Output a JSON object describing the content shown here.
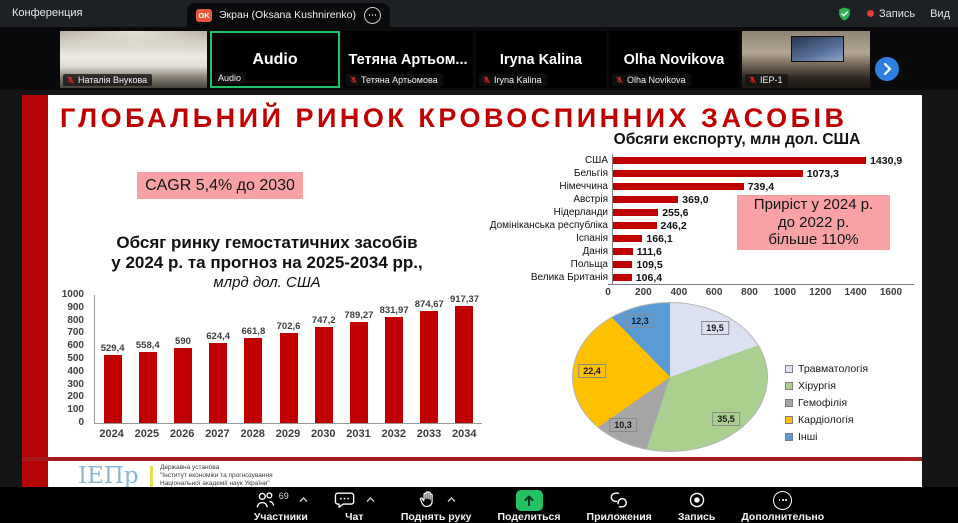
{
  "titlebar": {
    "conference_label": "Конференция",
    "tab_badge": "OK",
    "tab_title": "Экран (Oksana Kushnirenko)",
    "record_label": "Запись",
    "view_label": "Вид",
    "icons": [
      "shield-check-icon",
      "record-dot-icon",
      "tab-options-ellipsis-icon"
    ]
  },
  "filmstrip": {
    "tiles": [
      {
        "name": "Наталія Внукова",
        "kind": "video"
      },
      {
        "name": "Audio",
        "center": "Audio",
        "kind": "audio-active"
      },
      {
        "name": "Тетяна Артьомова",
        "center": "Тетяна Артьом...",
        "kind": "label"
      },
      {
        "name": "Iryna Kalina",
        "center": "Iryna Kalina",
        "kind": "label"
      },
      {
        "name": "Olha Novikova",
        "center": "Olha Novikova",
        "kind": "label"
      },
      {
        "name": "IEP-1",
        "kind": "video"
      }
    ],
    "active_border_color": "#23c063"
  },
  "slide": {
    "title": "ГЛОБАЛЬНИЙ РИНОК КРОВОСПИННИХ ЗАСОБІВ",
    "title_color": "#c00000",
    "accent_color": "#b40404",
    "note_bg": "#f8a2a6",
    "cagr_note": "CAGR 5,4% до 2030",
    "growth_note_lines": [
      "Приріст у 2024 р.",
      "до 2022 р.",
      "більше 110%"
    ],
    "footer": {
      "logo": "ІЕПр",
      "org_lines": [
        "Державна установа",
        "\"Інститут економіки та прогнозування",
        "Національної академії наук України\""
      ]
    }
  },
  "chart_data": [
    {
      "id": "market-forecast",
      "type": "bar",
      "title_lines": [
        "Обсяг ринку гемостатичних засобів",
        "у 2024 р. та прогноз на 2025-2034 рр.,"
      ],
      "subtitle": "млрд дол. США",
      "categories": [
        "2024",
        "2025",
        "2026",
        "2027",
        "2028",
        "2029",
        "2030",
        "2031",
        "2032",
        "2033",
        "2034"
      ],
      "values": [
        529.4,
        558.4,
        590,
        624.4,
        661.8,
        702.6,
        747.2,
        789.27,
        831.97,
        874.67,
        917.37
      ],
      "labels": [
        "529,4",
        "558,4",
        "590",
        "624,4",
        "661,8",
        "702,6",
        "747,2",
        "789,27",
        "831,97",
        "874,67",
        "917,37"
      ],
      "ylim": [
        0,
        1000
      ],
      "ytick_step": 100,
      "bar_color": "#c00000",
      "grid": false
    },
    {
      "id": "export-volumes",
      "type": "bar-horizontal",
      "title": "Обсяги експорту, млн дол. США",
      "categories": [
        "США",
        "Бельгія",
        "Німеччина",
        "Австрія",
        "Нідерланди",
        "Домініканська республіка",
        "Іспанія",
        "Данія",
        "Польща",
        "Велика Британія"
      ],
      "values": [
        1430.9,
        1073.3,
        739.4,
        369.0,
        255.6,
        246.2,
        166.1,
        111.6,
        109.5,
        106.4
      ],
      "labels": [
        "1430,9",
        "1073,3",
        "739,4",
        "369,0",
        "255,6",
        "246,2",
        "166,1",
        "111,6",
        "109,5",
        "106,4"
      ],
      "xlim": [
        0,
        1600
      ],
      "xtick_step": 200,
      "bar_color": "#c00000",
      "grid": false
    },
    {
      "id": "market-segments",
      "type": "pie",
      "slices": [
        {
          "label": "Травматологія",
          "value": 19.5,
          "display": "19,5",
          "color": "#dbe1f2"
        },
        {
          "label": "Хірургія",
          "value": 35.5,
          "display": "35,5",
          "color": "#a9d08e"
        },
        {
          "label": "Гемофілія",
          "value": 10.3,
          "display": "10,3",
          "color": "#a6a6a6"
        },
        {
          "label": "Кардіологія",
          "value": 22.4,
          "display": "22,4",
          "color": "#ffc000"
        },
        {
          "label": "Інші",
          "value": 12.3,
          "display": "12,3",
          "color": "#5b9bd5"
        }
      ],
      "legend_position": "right",
      "start_angle_deg": 0,
      "direction": "clockwise"
    }
  ],
  "toolbar": {
    "items": [
      {
        "label": "Участники",
        "count": "69"
      },
      {
        "label": "Чат"
      },
      {
        "label": "Поднять руку"
      },
      {
        "label": "Поделиться"
      },
      {
        "label": "Приложения"
      },
      {
        "label": "Запись"
      },
      {
        "label": "Дополнительно"
      }
    ],
    "share_button_color": "#22c162"
  }
}
